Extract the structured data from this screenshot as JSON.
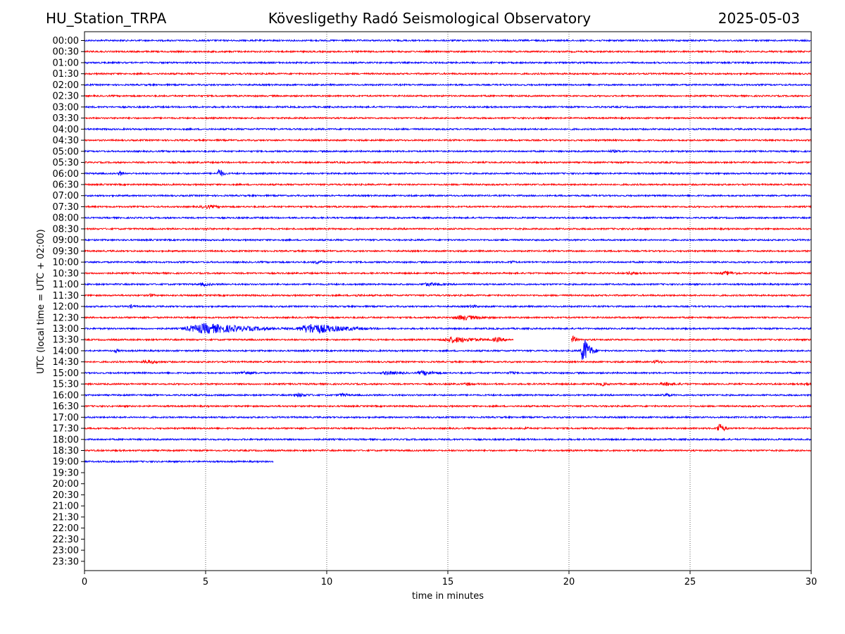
{
  "header": {
    "station": "HU_Station_TRPA",
    "title": "Kövesligethy Radó Seismological Observatory",
    "date": "2025-05-03"
  },
  "chart_data": {
    "type": "line",
    "title": "Kövesligethy Radó Seismological Observatory",
    "xlabel": "time in minutes",
    "ylabel": "UTC (local time = UTC + 02:00)",
    "xlim": [
      0,
      30
    ],
    "x_ticks": [
      0,
      5,
      10,
      15,
      20,
      25,
      30
    ],
    "vertical_gridlines_at": [
      5,
      10,
      15,
      20,
      25
    ],
    "grid": "vertical dotted",
    "colors": {
      "even_rows": "#0000ff",
      "odd_rows": "#ff0000",
      "grid": "#000000"
    },
    "y_ticks": [
      "00:00",
      "00:30",
      "01:00",
      "01:30",
      "02:00",
      "02:30",
      "03:00",
      "03:30",
      "04:00",
      "04:30",
      "05:00",
      "05:30",
      "06:00",
      "06:30",
      "07:00",
      "07:30",
      "08:00",
      "08:30",
      "09:00",
      "09:30",
      "10:00",
      "10:30",
      "11:00",
      "11:30",
      "12:00",
      "12:30",
      "13:00",
      "13:30",
      "14:00",
      "14:30",
      "15:00",
      "15:30",
      "16:00",
      "16:30",
      "17:00",
      "17:30",
      "18:00",
      "18:30",
      "19:00",
      "19:30",
      "20:00",
      "20:30",
      "21:00",
      "21:30",
      "22:00",
      "22:30",
      "23:00",
      "23:30"
    ],
    "series": [
      {
        "start": "00:00",
        "end_min": 30,
        "events": []
      },
      {
        "start": "00:30",
        "end_min": 30,
        "events": []
      },
      {
        "start": "01:00",
        "end_min": 30,
        "events": []
      },
      {
        "start": "01:30",
        "end_min": 30,
        "events": []
      },
      {
        "start": "02:00",
        "end_min": 30,
        "events": []
      },
      {
        "start": "02:30",
        "end_min": 30,
        "events": []
      },
      {
        "start": "03:00",
        "end_min": 30,
        "events": []
      },
      {
        "start": "03:30",
        "end_min": 30,
        "events": []
      },
      {
        "start": "04:00",
        "end_min": 30,
        "events": []
      },
      {
        "start": "04:30",
        "end_min": 30,
        "events": []
      },
      {
        "start": "05:00",
        "end_min": 30,
        "events": [
          {
            "t": 21.8,
            "amp": 2,
            "dur": 1.2
          }
        ]
      },
      {
        "start": "05:30",
        "end_min": 30,
        "events": []
      },
      {
        "start": "06:00",
        "end_min": 30,
        "events": [
          {
            "t": 1.45,
            "amp": 5,
            "dur": 0.15
          },
          {
            "t": 5.55,
            "amp": 9,
            "dur": 0.2
          }
        ]
      },
      {
        "start": "06:30",
        "end_min": 30,
        "events": []
      },
      {
        "start": "07:00",
        "end_min": 30,
        "events": []
      },
      {
        "start": "07:30",
        "end_min": 30,
        "events": [
          {
            "t": 5.0,
            "amp": 3,
            "dur": 1.0
          }
        ]
      },
      {
        "start": "08:00",
        "end_min": 30,
        "events": []
      },
      {
        "start": "08:30",
        "end_min": 30,
        "events": [
          {
            "t": 5.0,
            "amp": 2,
            "dur": 0.6
          }
        ]
      },
      {
        "start": "09:00",
        "end_min": 30,
        "events": []
      },
      {
        "start": "09:30",
        "end_min": 30,
        "events": []
      },
      {
        "start": "10:00",
        "end_min": 30,
        "events": [
          {
            "t": 9.6,
            "amp": 3,
            "dur": 0.6
          },
          {
            "t": 17.6,
            "amp": 3,
            "dur": 0.3
          }
        ]
      },
      {
        "start": "10:30",
        "end_min": 30,
        "events": [
          {
            "t": 22.5,
            "amp": 3,
            "dur": 0.5
          },
          {
            "t": 26.5,
            "amp": 3,
            "dur": 1.0
          }
        ]
      },
      {
        "start": "11:00",
        "end_min": 30,
        "events": [
          {
            "t": 4.9,
            "amp": 3,
            "dur": 0.6
          },
          {
            "t": 14.2,
            "amp": 3,
            "dur": 1.2
          }
        ]
      },
      {
        "start": "11:30",
        "end_min": 30,
        "events": [
          {
            "t": 2.7,
            "amp": 3,
            "dur": 0.3
          },
          {
            "t": 11.2,
            "amp": 2,
            "dur": 1.0
          }
        ]
      },
      {
        "start": "12:00",
        "end_min": 30,
        "events": [
          {
            "t": 1.9,
            "amp": 3,
            "dur": 0.4
          },
          {
            "t": 16.0,
            "amp": 3,
            "dur": 0.4
          }
        ]
      },
      {
        "start": "12:30",
        "end_min": 30,
        "events": [
          {
            "t": 15.6,
            "amp": 4,
            "dur": 1.4
          },
          {
            "t": 22.9,
            "amp": 2,
            "dur": 0.4
          }
        ]
      },
      {
        "start": "13:00",
        "end_min": 30,
        "events": [
          {
            "t": 5.0,
            "amp": 8,
            "dur": 2.5
          },
          {
            "t": 9.4,
            "amp": 8,
            "dur": 1.8
          }
        ]
      },
      {
        "start": "13:30",
        "end_min": 17.7,
        "resume_min": 20.1,
        "events": [
          {
            "t": 15.2,
            "amp": 5,
            "dur": 1.4
          },
          {
            "t": 17.0,
            "amp": 4,
            "dur": 0.6
          },
          {
            "t": 20.15,
            "amp": 7,
            "dur": 0.2
          }
        ]
      },
      {
        "start": "14:00",
        "end_min": 30,
        "events": [
          {
            "t": 1.3,
            "amp": 3,
            "dur": 0.3
          },
          {
            "t": 20.6,
            "amp": 22,
            "dur": 0.3
          }
        ]
      },
      {
        "start": "14:30",
        "end_min": 30,
        "events": [
          {
            "t": 2.6,
            "amp": 3,
            "dur": 1.0
          },
          {
            "t": 23.6,
            "amp": 3,
            "dur": 0.5
          }
        ]
      },
      {
        "start": "15:00",
        "end_min": 30,
        "events": [
          {
            "t": 6.6,
            "amp": 3,
            "dur": 0.8
          },
          {
            "t": 12.5,
            "amp": 3,
            "dur": 1.2
          },
          {
            "t": 14.0,
            "amp": 4,
            "dur": 0.8
          },
          {
            "t": 17.6,
            "amp": 3,
            "dur": 0.3
          }
        ]
      },
      {
        "start": "15:30",
        "end_min": 30,
        "events": [
          {
            "t": 15.8,
            "amp": 3,
            "dur": 0.4
          },
          {
            "t": 21.4,
            "amp": 3,
            "dur": 0.4
          },
          {
            "t": 24.0,
            "amp": 3,
            "dur": 1.0
          },
          {
            "t": 29.8,
            "amp": 3,
            "dur": 0.4
          }
        ]
      },
      {
        "start": "16:00",
        "end_min": 30,
        "events": [
          {
            "t": 8.8,
            "amp": 3,
            "dur": 1.0
          },
          {
            "t": 10.6,
            "amp": 3,
            "dur": 0.6
          },
          {
            "t": 24.0,
            "amp": 3,
            "dur": 0.5
          }
        ]
      },
      {
        "start": "16:30",
        "end_min": 30,
        "events": []
      },
      {
        "start": "17:00",
        "end_min": 30,
        "events": []
      },
      {
        "start": "17:30",
        "end_min": 30,
        "events": [
          {
            "t": 18.2,
            "amp": 4,
            "dur": 0.15
          },
          {
            "t": 26.2,
            "amp": 8,
            "dur": 0.3
          }
        ]
      },
      {
        "start": "18:00",
        "end_min": 30,
        "events": []
      },
      {
        "start": "18:30",
        "end_min": 30,
        "events": []
      },
      {
        "start": "19:00",
        "end_min": 7.8,
        "events": []
      }
    ]
  }
}
